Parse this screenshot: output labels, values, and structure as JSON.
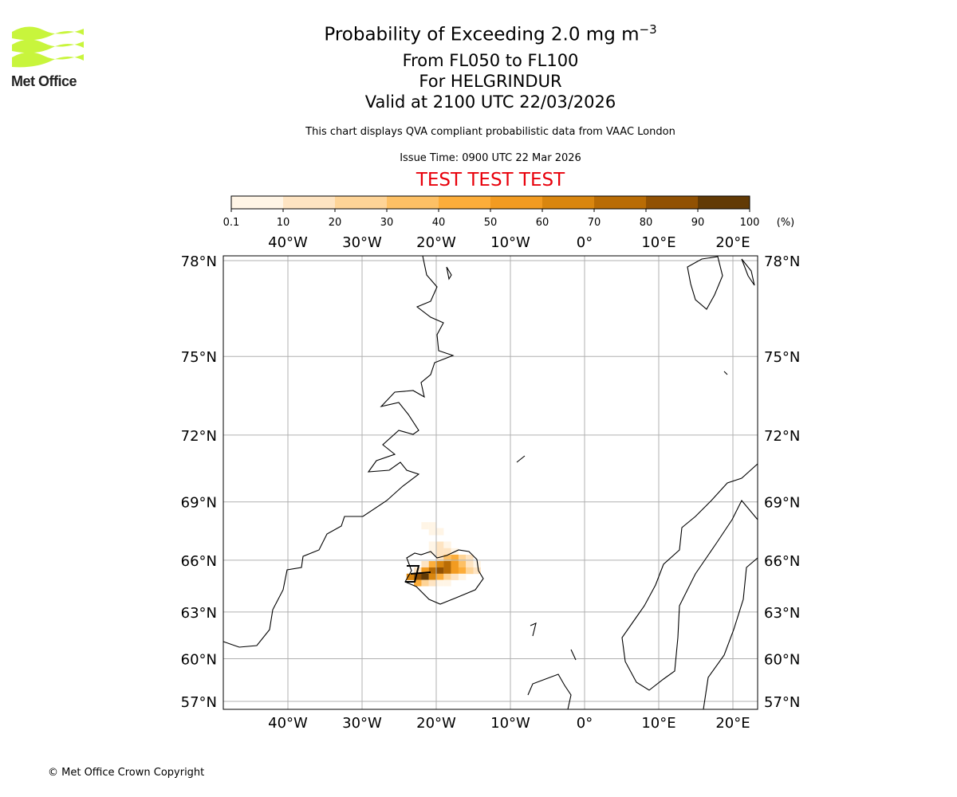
{
  "logo": {
    "text": "Met Office",
    "color": "#c8f53c"
  },
  "title": {
    "line1": "Probability of Exceeding 2.0 mg m",
    "line1_sup": "−3",
    "line2": "From FL050 to FL100",
    "line3": "For HELGRINDUR",
    "line4": "Valid at 2100 UTC 22/03/2026"
  },
  "description": "This chart displays QVA compliant probabilistic data from VAAC London",
  "issue_time": "Issue Time: 0900 UTC 22 Mar 2026",
  "test_banner": "TEST TEST TEST",
  "copyright": "© Met Office Crown Copyright",
  "chart_data": {
    "type": "heatmap",
    "colorbar": {
      "ticks": [
        "0.1",
        "10",
        "20",
        "30",
        "40",
        "50",
        "60",
        "70",
        "80",
        "90",
        "100"
      ],
      "unit": "(%)",
      "bounds": [
        0.1,
        10,
        20,
        30,
        40,
        50,
        60,
        70,
        80,
        90,
        100
      ],
      "colors": [
        "#fff5e6",
        "#fee4c2",
        "#fed497",
        "#fdc065",
        "#fcad3a",
        "#f29b21",
        "#d9860f",
        "#b96c05",
        "#915103",
        "#623a05"
      ]
    },
    "lon_ticks": [
      {
        "v": -40,
        "label": "40°W"
      },
      {
        "v": -30,
        "label": "30°W"
      },
      {
        "v": -20,
        "label": "20°W"
      },
      {
        "v": -10,
        "label": "10°W"
      },
      {
        "v": 0,
        "label": "0°"
      },
      {
        "v": 10,
        "label": "10°E"
      },
      {
        "v": 20,
        "label": "20°E"
      }
    ],
    "lat_ticks": [
      {
        "v": 78,
        "label": "78°N"
      },
      {
        "v": 75,
        "label": "75°N"
      },
      {
        "v": 72,
        "label": "72°N"
      },
      {
        "v": 69,
        "label": "69°N"
      },
      {
        "v": 66,
        "label": "66°N"
      },
      {
        "v": 63,
        "label": "63°N"
      },
      {
        "v": 60,
        "label": "60°N"
      },
      {
        "v": 57,
        "label": "57°N"
      }
    ],
    "lon_range": [
      -48.5,
      23.5
    ],
    "lat_range": [
      56.8,
      78.2
    ],
    "plume_rows": [
      {
        "lat": 68.0,
        "lon0": -22,
        "p": [
          5,
          5
        ]
      },
      {
        "lat": 67.7,
        "lon0": -21,
        "p": [
          5,
          5
        ]
      },
      {
        "lat": 67.0,
        "lon0": -21,
        "p": [
          5,
          10,
          5
        ]
      },
      {
        "lat": 66.65,
        "lon0": -21,
        "p": [
          5,
          15,
          10,
          5
        ]
      },
      {
        "lat": 66.3,
        "lon0": -20,
        "p": [
          10,
          30,
          40,
          25,
          10
        ]
      },
      {
        "lat": 65.95,
        "lon0": -22,
        "p": [
          10,
          40,
          60,
          70,
          55,
          35,
          15,
          5
        ]
      },
      {
        "lat": 65.6,
        "lon0": -23,
        "p": [
          15,
          50,
          75,
          85,
          70,
          55,
          40,
          20,
          10
        ]
      },
      {
        "lat": 65.25,
        "lon0": -24,
        "p": [
          60,
          85,
          90,
          60,
          40,
          20,
          10,
          5
        ]
      },
      {
        "lat": 64.9,
        "lon0": -23,
        "p": [
          40,
          20,
          10,
          5,
          5
        ]
      }
    ]
  }
}
